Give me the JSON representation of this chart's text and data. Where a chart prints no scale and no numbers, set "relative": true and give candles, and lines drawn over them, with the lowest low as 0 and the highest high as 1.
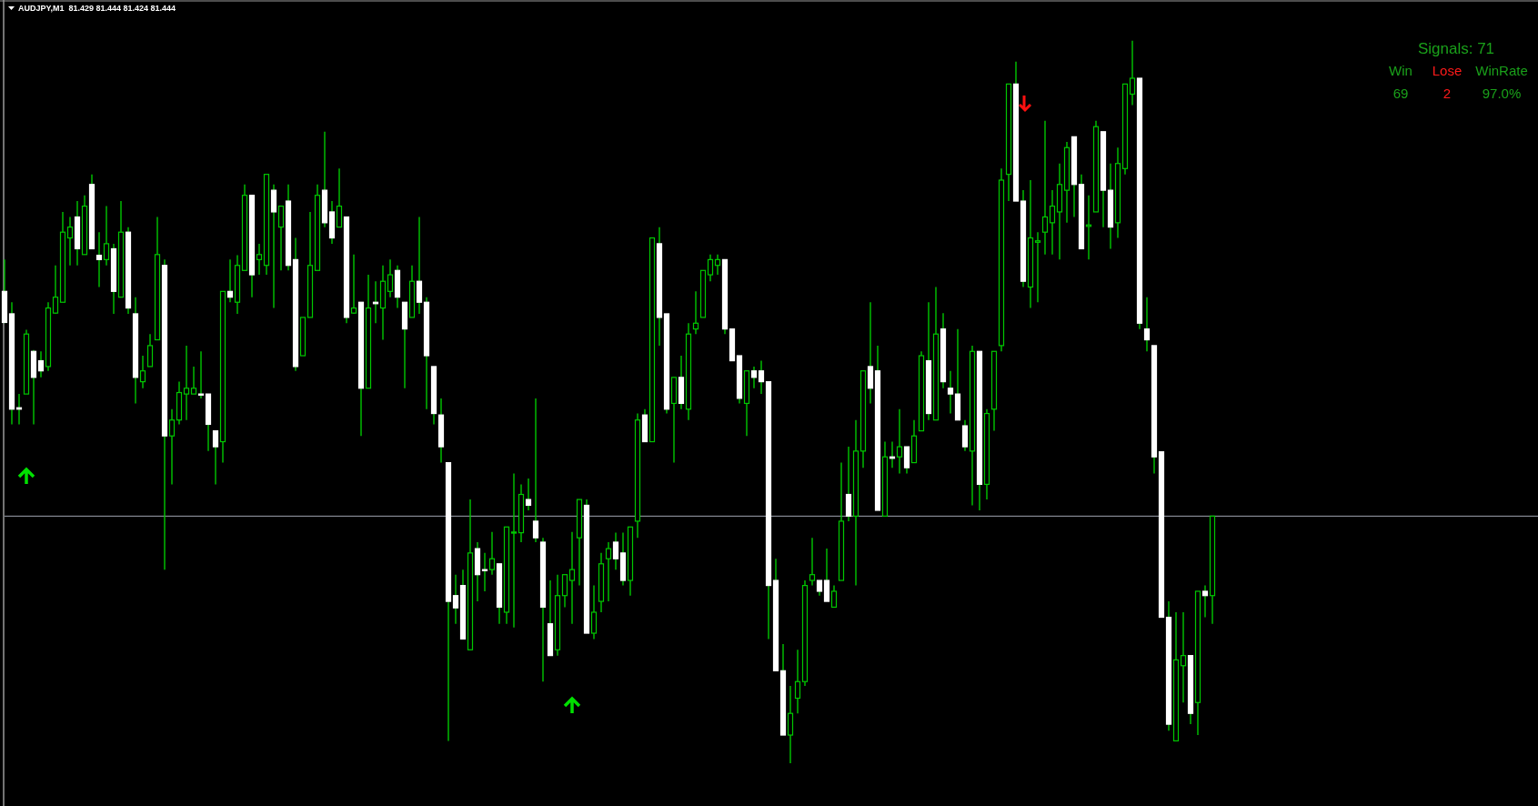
{
  "chart_data": {
    "type": "candlestick",
    "title": "AUDJPY,M1  81.429 81.444 81.424 81.444",
    "relative": true,
    "color": "#00c800",
    "colors": [
      "#ffffff",
      "#ffffff",
      "#ffffff",
      "#00c800",
      "#ffffff",
      "#ffffff",
      "#00c800",
      "#00c800",
      "#00c800",
      "#00c800",
      "#ffffff",
      "#00c800",
      "#ffffff",
      "#ffffff",
      "#00c800",
      "#ffffff",
      "#00c800",
      "#ffffff",
      "#ffffff",
      "#00c800",
      "#00c800",
      "#00c800",
      "#ffffff",
      "#00c800",
      "#00c800",
      "#00c800",
      "#00c800",
      "#ffffff",
      "#ffffff",
      "#ffffff",
      "#00c800",
      "#ffffff",
      "#00c800",
      "#00c800",
      "#ffffff",
      "#00c800",
      "#00c800",
      "#ffffff",
      "#00c800",
      "#ffffff",
      "#ffffff",
      "#00c800",
      "#00c800",
      "#00c800",
      "#ffffff",
      "#ffffff",
      "#00c800",
      "#ffffff",
      "#00c800",
      "#ffffff",
      "#00c800",
      "#ffffff",
      "#00c800",
      "#00c800",
      "#ffffff",
      "#ffffff",
      "#00c800",
      "#ffffff",
      "#ffffff",
      "#ffffff",
      "#ffffff",
      "#ffffff",
      "#ffffff",
      "#ffffff",
      "#00c800",
      "#ffffff",
      "#ffffff",
      "#00c800",
      "#ffffff",
      "#00c800",
      "#00c800",
      "#00c800",
      "#ffffff",
      "#ffffff",
      "#ffffff",
      "#ffffff",
      "#00c800",
      "#00c800",
      "#00c800",
      "#00c800",
      "#ffffff",
      "#00c800",
      "#00c800",
      "#00c800",
      "#ffffff",
      "#ffffff",
      "#00c800",
      "#00c800",
      "#ffffff",
      "#00c800",
      "#ffffff",
      "#ffffff",
      "#00c800",
      "#ffffff",
      "#00c800",
      "#00c800",
      "#00c800",
      "#00c800",
      "#00c800",
      "#ffffff",
      "#ffffff",
      "#ffffff",
      "#00c800",
      "#ffffff",
      "#ffffff",
      "#ffffff",
      "#ffffff",
      "#ffffff",
      "#00c800",
      "#00c800",
      "#00c800",
      "#00c800",
      "#ffffff",
      "#ffffff",
      "#00c800",
      "#00c800",
      "#ffffff",
      "#00c800",
      "#00c800",
      "#ffffff",
      "#ffffff",
      "#00c800",
      "#ffffff",
      "#00c800",
      "#ffffff",
      "#00c800",
      "#00c800",
      "#ffffff",
      "#00c800",
      "#ffffff",
      "#ffffff",
      "#ffffff",
      "#ffffff",
      "#00c800",
      "#ffffff",
      "#00c800",
      "#00c800",
      "#00c800",
      "#00c800",
      "#ffffff",
      "#ffffff",
      "#00c800",
      "#00c800",
      "#00c800",
      "#00c800",
      "#00c800",
      "#00c800",
      "#ffffff",
      "#ffffff",
      "#00c800",
      "#00c800",
      "#ffffff",
      "#ffffff",
      "#00c800",
      "#00c800",
      "#00c800",
      "#ffffff",
      "#ffffff",
      "#ffffff",
      "#ffffff",
      "#ffffff",
      "#00c800",
      "#00c800",
      "#ffffff",
      "#00c800",
      "#ffffff",
      "#00c800"
    ],
    "categories": [
      null,
      null,
      null,
      null,
      null,
      null,
      null,
      null,
      null,
      null,
      null,
      null,
      null,
      null,
      null,
      null,
      null,
      null,
      null,
      null,
      null,
      null,
      null,
      null,
      null,
      null,
      null,
      null,
      null,
      null,
      null,
      null,
      null,
      null,
      null,
      null,
      null,
      null,
      null,
      null,
      null,
      null,
      null,
      null,
      null,
      null,
      null,
      null,
      null,
      null,
      null,
      null,
      null,
      null,
      null,
      null,
      null,
      null,
      null,
      null,
      null,
      null,
      null,
      null,
      null,
      null,
      null,
      null,
      null,
      null,
      null,
      null,
      null,
      null,
      null,
      null,
      null,
      null,
      null,
      null,
      null,
      null,
      null,
      null,
      null,
      null,
      null,
      null,
      null,
      null,
      null,
      null,
      null,
      null,
      null,
      null,
      null,
      null,
      null,
      null,
      null,
      null,
      null,
      null,
      null,
      null,
      null,
      null,
      null,
      null,
      null,
      null,
      null,
      null,
      null,
      null,
      null,
      null,
      null,
      null,
      null,
      null,
      null,
      null,
      null,
      null,
      null,
      null,
      null,
      null,
      null,
      null,
      null,
      null,
      null,
      null,
      null,
      null,
      null,
      null,
      null,
      null,
      null,
      null,
      null,
      null,
      null,
      null,
      null,
      null,
      null,
      null,
      null,
      null,
      null,
      null,
      null,
      null,
      null,
      null,
      null,
      null,
      null,
      null,
      null,
      null,
      null
    ],
    "ohlc": [
      [
        0.653,
        0.697,
        0.609,
        0.61
      ],
      [
        0.622,
        0.638,
        0.469,
        0.49
      ],
      [
        0.492,
        0.511,
        0.469,
        0.49
      ],
      [
        0.511,
        0.6,
        0.511,
        0.594
      ],
      [
        0.57,
        0.572,
        0.469,
        0.534
      ],
      [
        0.557,
        0.57,
        0.534,
        0.543
      ],
      [
        0.549,
        0.638,
        0.543,
        0.63
      ],
      [
        0.623,
        0.689,
        0.622,
        0.645
      ],
      [
        0.638,
        0.763,
        0.638,
        0.735
      ],
      [
        0.727,
        0.756,
        0.689,
        0.742
      ],
      [
        0.756,
        0.778,
        0.689,
        0.712
      ],
      [
        0.704,
        0.786,
        0.704,
        0.771
      ],
      [
        0.801,
        0.815,
        0.712,
        0.712
      ],
      [
        0.703,
        0.735,
        0.659,
        0.697
      ],
      [
        0.697,
        0.771,
        0.689,
        0.719
      ],
      [
        0.712,
        0.719,
        0.622,
        0.653
      ],
      [
        0.645,
        0.778,
        0.645,
        0.735
      ],
      [
        0.735,
        0.742,
        0.622,
        0.63
      ],
      [
        0.622,
        0.645,
        0.498,
        0.534
      ],
      [
        0.528,
        0.564,
        0.519,
        0.543
      ],
      [
        0.549,
        0.594,
        0.549,
        0.578
      ],
      [
        0.586,
        0.756,
        0.586,
        0.704
      ],
      [
        0.689,
        0.697,
        0.268,
        0.453
      ],
      [
        0.453,
        0.49,
        0.386,
        0.475
      ],
      [
        0.475,
        0.528,
        0.469,
        0.513
      ],
      [
        0.511,
        0.578,
        0.475,
        0.519
      ],
      [
        0.511,
        0.549,
        0.511,
        0.519
      ],
      [
        0.511,
        0.57,
        0.505,
        0.51
      ],
      [
        0.511,
        0.511,
        0.432,
        0.469
      ],
      [
        0.46,
        0.46,
        0.386,
        0.438
      ],
      [
        0.445,
        0.653,
        0.416,
        0.653
      ],
      [
        0.653,
        0.697,
        0.638,
        0.645
      ],
      [
        0.638,
        0.703,
        0.622,
        0.689
      ],
      [
        0.682,
        0.801,
        0.682,
        0.786
      ],
      [
        0.786,
        0.786,
        0.645,
        0.676
      ],
      [
        0.697,
        0.719,
        0.676,
        0.704
      ],
      [
        0.689,
        0.815,
        0.676,
        0.815
      ],
      [
        0.793,
        0.801,
        0.63,
        0.763
      ],
      [
        0.742,
        0.771,
        0.682,
        0.771
      ],
      [
        0.778,
        0.801,
        0.682,
        0.689
      ],
      [
        0.697,
        0.727,
        0.543,
        0.549
      ],
      [
        0.564,
        0.617,
        0.564,
        0.617
      ],
      [
        0.617,
        0.763,
        0.617,
        0.689
      ],
      [
        0.682,
        0.801,
        0.682,
        0.786
      ],
      [
        0.793,
        0.874,
        0.742,
        0.748
      ],
      [
        0.763,
        0.778,
        0.719,
        0.727
      ],
      [
        0.742,
        0.823,
        0.742,
        0.771
      ],
      [
        0.756,
        0.756,
        0.609,
        0.617
      ],
      [
        0.623,
        0.704,
        0.622,
        0.63
      ],
      [
        0.638,
        0.638,
        0.453,
        0.519
      ],
      [
        0.519,
        0.676,
        0.519,
        0.63
      ],
      [
        0.638,
        0.667,
        0.609,
        0.636
      ],
      [
        0.63,
        0.689,
        0.586,
        0.667
      ],
      [
        0.653,
        0.697,
        0.645,
        0.676
      ],
      [
        0.682,
        0.689,
        0.63,
        0.645
      ],
      [
        0.638,
        0.638,
        0.519,
        0.601
      ],
      [
        0.617,
        0.689,
        0.617,
        0.667
      ],
      [
        0.667,
        0.756,
        0.622,
        0.638
      ],
      [
        0.638,
        0.645,
        0.49,
        0.564
      ],
      [
        0.549,
        0.549,
        0.469,
        0.484
      ],
      [
        0.482,
        0.505,
        0.416,
        0.438
      ],
      [
        0.416,
        0.416,
        0.031,
        0.224
      ],
      [
        0.232,
        0.261,
        0.193,
        0.215
      ],
      [
        0.246,
        0.268,
        0.172,
        0.172
      ],
      [
        0.157,
        0.365,
        0.157,
        0.291
      ],
      [
        0.297,
        0.306,
        0.224,
        0.261
      ],
      [
        0.268,
        0.291,
        0.238,
        0.267
      ],
      [
        0.268,
        0.32,
        0.261,
        0.283
      ],
      [
        0.276,
        0.276,
        0.193,
        0.216
      ],
      [
        0.209,
        0.327,
        0.193,
        0.327
      ],
      [
        0.319,
        0.401,
        0.188,
        0.32
      ],
      [
        0.319,
        0.386,
        0.306,
        0.372
      ],
      [
        0.365,
        0.394,
        0.35,
        0.357
      ],
      [
        0.335,
        0.505,
        0.306,
        0.312
      ],
      [
        0.306,
        0.312,
        0.113,
        0.216
      ],
      [
        0.193,
        0.253,
        0.149,
        0.149
      ],
      [
        0.157,
        0.261,
        0.149,
        0.232
      ],
      [
        0.232,
        0.261,
        0.216,
        0.261
      ],
      [
        0.253,
        0.32,
        0.193,
        0.268
      ],
      [
        0.312,
        0.365,
        0.246,
        0.365
      ],
      [
        0.357,
        0.365,
        0.18,
        0.18
      ],
      [
        0.18,
        0.246,
        0.172,
        0.209
      ],
      [
        0.224,
        0.291,
        0.209,
        0.276
      ],
      [
        0.283,
        0.306,
        0.224,
        0.297
      ],
      [
        0.306,
        0.319,
        0.268,
        0.283
      ],
      [
        0.291,
        0.319,
        0.246,
        0.253
      ],
      [
        0.253,
        0.327,
        0.232,
        0.327
      ],
      [
        0.335,
        0.484,
        0.312,
        0.475
      ],
      [
        0.482,
        0.49,
        0.445,
        0.445
      ],
      [
        0.445,
        0.727,
        0.445,
        0.727
      ],
      [
        0.719,
        0.742,
        0.578,
        0.617
      ],
      [
        0.622,
        0.622,
        0.484,
        0.49
      ],
      [
        0.498,
        0.534,
        0.416,
        0.534
      ],
      [
        0.534,
        0.564,
        0.49,
        0.498
      ],
      [
        0.49,
        0.609,
        0.475,
        0.594
      ],
      [
        0.601,
        0.653,
        0.594,
        0.609
      ],
      [
        0.617,
        0.682,
        0.617,
        0.682
      ],
      [
        0.676,
        0.704,
        0.667,
        0.697
      ],
      [
        0.689,
        0.704,
        0.676,
        0.697
      ],
      [
        0.697,
        0.697,
        0.594,
        0.601
      ],
      [
        0.601,
        0.601,
        0.557,
        0.557
      ],
      [
        0.564,
        0.564,
        0.498,
        0.505
      ],
      [
        0.498,
        0.543,
        0.453,
        0.543
      ],
      [
        0.543,
        0.549,
        0.519,
        0.534
      ],
      [
        0.543,
        0.557,
        0.511,
        0.528
      ],
      [
        0.528,
        0.528,
        0.172,
        0.246
      ],
      [
        0.253,
        0.283,
        0.128,
        0.128
      ],
      [
        0.128,
        0.165,
        0.039,
        0.039
      ],
      [
        0.039,
        0.107,
        0,
        0.069
      ],
      [
        0.09,
        0.157,
        0.069,
        0.113
      ],
      [
        0.113,
        0.253,
        0.107,
        0.246
      ],
      [
        0.253,
        0.312,
        0.246,
        0.261
      ],
      [
        0.253,
        0.253,
        0.232,
        0.238
      ],
      [
        0.253,
        0.297,
        0.224,
        0.224
      ],
      [
        0.216,
        0.246,
        0.216,
        0.238
      ],
      [
        0.253,
        0.416,
        0.253,
        0.335
      ],
      [
        0.372,
        0.438,
        0.335,
        0.342
      ],
      [
        0.342,
        0.475,
        0.246,
        0.432
      ],
      [
        0.432,
        0.543,
        0.409,
        0.543
      ],
      [
        0.549,
        0.638,
        0.498,
        0.519
      ],
      [
        0.543,
        0.578,
        0.35,
        0.35
      ],
      [
        0.342,
        0.445,
        0.342,
        0.424
      ],
      [
        0.424,
        0.445,
        0.409,
        0.422
      ],
      [
        0.424,
        0.49,
        0.401,
        0.438
      ],
      [
        0.438,
        0.438,
        0.401,
        0.409
      ],
      [
        0.416,
        0.475,
        0.416,
        0.453
      ],
      [
        0.46,
        0.57,
        0.46,
        0.564
      ],
      [
        0.557,
        0.638,
        0.475,
        0.484
      ],
      [
        0.475,
        0.659,
        0.475,
        0.594
      ],
      [
        0.601,
        0.623,
        0.519,
        0.528
      ],
      [
        0.519,
        0.543,
        0.484,
        0.511
      ],
      [
        0.511,
        0.601,
        0.475,
        0.475
      ],
      [
        0.467,
        0.475,
        0.432,
        0.438
      ],
      [
        0.432,
        0.578,
        0.357,
        0.57
      ],
      [
        0.57,
        0.57,
        0.35,
        0.386
      ],
      [
        0.386,
        0.49,
        0.365,
        0.484
      ],
      [
        0.49,
        0.57,
        0.46,
        0.57
      ],
      [
        0.578,
        0.823,
        0.57,
        0.807
      ],
      [
        0.815,
        0.94,
        0.778,
        0.94
      ],
      [
        0.94,
        0.971,
        0.778,
        0.778
      ],
      [
        0.778,
        0.793,
        0.659,
        0.667
      ],
      [
        0.659,
        0.807,
        0.63,
        0.727
      ],
      [
        0.721,
        0.735,
        0.638,
        0.723
      ],
      [
        0.735,
        0.889,
        0.704,
        0.756
      ],
      [
        0.748,
        0.793,
        0.704,
        0.771
      ],
      [
        0.763,
        0.83,
        0.697,
        0.801
      ],
      [
        0.793,
        0.86,
        0.748,
        0.852
      ],
      [
        0.867,
        0.867,
        0.756,
        0.801
      ],
      [
        0.801,
        0.815,
        0.712,
        0.712
      ],
      [
        0.743,
        0.786,
        0.697,
        0.745
      ],
      [
        0.763,
        0.889,
        0.763,
        0.881
      ],
      [
        0.874,
        0.874,
        0.742,
        0.793
      ],
      [
        0.793,
        0.83,
        0.712,
        0.742
      ],
      [
        0.748,
        0.852,
        0.727,
        0.83
      ],
      [
        0.823,
        0.94,
        0.815,
        0.94
      ],
      [
        0.926,
        1,
        0.911,
        0.948
      ],
      [
        0.948,
        0.948,
        0.601,
        0.609
      ],
      [
        0.601,
        0.645,
        0.57,
        0.586
      ],
      [
        0.578,
        0.578,
        0.401,
        0.424
      ],
      [
        0.431,
        0.431,
        0.202,
        0.202
      ],
      [
        0.202,
        0.224,
        0.045,
        0.054
      ],
      [
        0.031,
        0.209,
        0.031,
        0.143
      ],
      [
        0.135,
        0.209,
        0.084,
        0.149
      ],
      [
        0.149,
        0.149,
        0.054,
        0.069
      ],
      [
        0.084,
        0.238,
        0.039,
        0.238
      ],
      [
        0.238,
        0.246,
        0.202,
        0.232
      ],
      [
        0.232,
        0.342,
        0.193,
        0.342
      ]
    ],
    "ref_lines": [
      {
        "axis": "y",
        "value": 0.342,
        "color": "#a0a4b0"
      }
    ],
    "annotations": [
      "Signals: 71",
      "Win",
      "Lose",
      "WinRate",
      "69",
      "2",
      "97.0%"
    ]
  }
}
